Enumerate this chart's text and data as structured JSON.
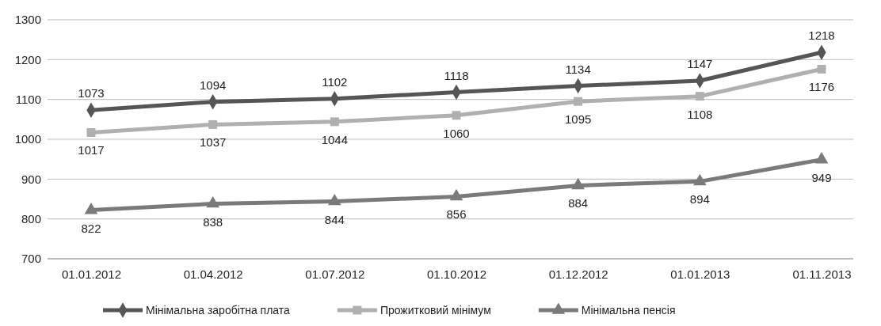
{
  "chart_data": {
    "type": "line",
    "categories": [
      "01.01.2012",
      "01.04.2012",
      "01.07.2012",
      "01.10.2012",
      "01.12.2012",
      "01.01.2013",
      "01.11.2013"
    ],
    "series": [
      {
        "name": "Мінімальна заробітна плата",
        "color": "#555555",
        "marker": "diamond",
        "values": [
          1073,
          1094,
          1102,
          1118,
          1134,
          1147,
          1218
        ]
      },
      {
        "name": "Прожитковий мінімум",
        "color": "#b0b0b0",
        "marker": "square",
        "values": [
          1017,
          1037,
          1044,
          1060,
          1095,
          1108,
          1176
        ]
      },
      {
        "name": "Мінімальна пенсія",
        "color": "#7a7a7a",
        "marker": "triangle",
        "values": [
          822,
          838,
          844,
          856,
          884,
          894,
          949
        ]
      }
    ],
    "ylim": [
      700,
      1300
    ],
    "yticks": [
      700,
      800,
      900,
      1000,
      1100,
      1200,
      1300
    ],
    "grid": "y",
    "legend": "bottom",
    "data_labels": true,
    "line_style": "solid"
  }
}
